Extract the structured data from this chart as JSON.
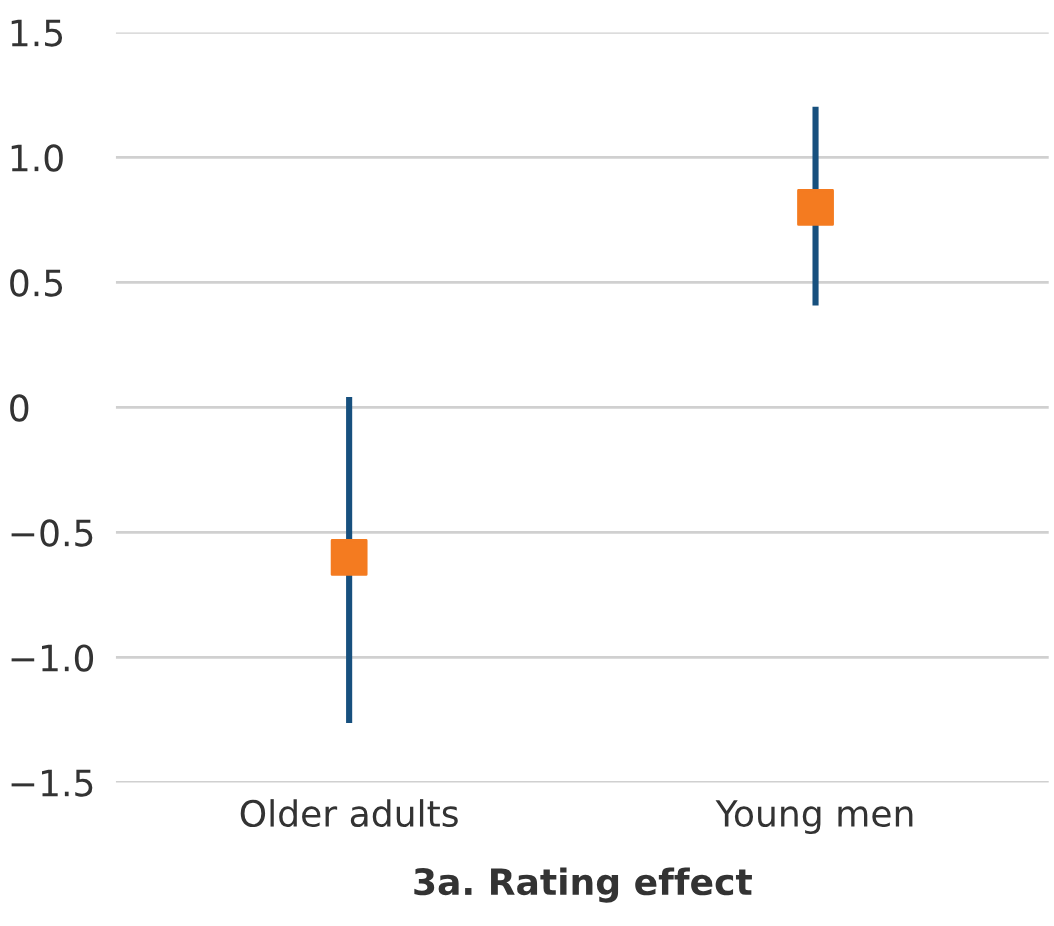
{
  "chart_data": {
    "type": "scatter",
    "xlabel": "3a. Rating effect",
    "categories": [
      "Older adults",
      "Young men"
    ],
    "series": [
      {
        "color": "#f47b20",
        "values": [
          -0.6,
          0.8
        ],
        "errors": [
          [
            -1.25,
            0.03
          ],
          [
            0.42,
            1.19
          ]
        ]
      }
    ],
    "ylim": [
      -1.5,
      1.5
    ],
    "yticks": [
      {
        "value": -1.5,
        "label": "−1.5"
      },
      {
        "value": -1.0,
        "label": "−1.0"
      },
      {
        "value": -0.5,
        "label": "−0.5"
      },
      {
        "value": 0,
        "label": "0"
      },
      {
        "value": 0.5,
        "label": "0.5"
      },
      {
        "value": 1.0,
        "label": "1.0"
      },
      {
        "value": 1.5,
        "label": "1.5"
      }
    ],
    "grid": "y",
    "marker": "square"
  }
}
